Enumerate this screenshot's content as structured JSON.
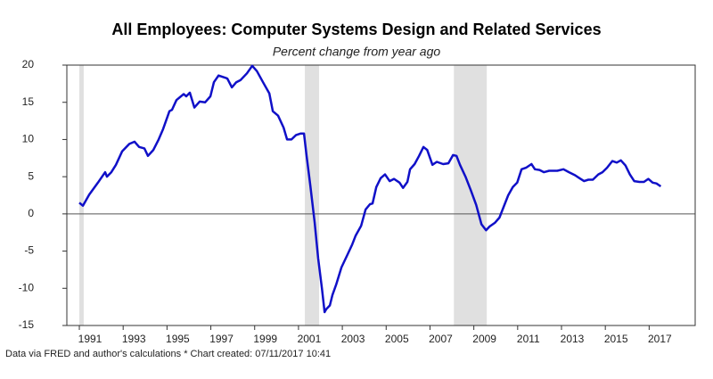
{
  "chart_data": {
    "type": "line",
    "title": "All Employees: Computer Systems Design and Related Services",
    "subtitle": "Percent change from year ago",
    "footnote": "Data via FRED and author's calculations * Chart created: 07/11/2017 10:41",
    "x": [
      1991.0,
      1991.16,
      1991.45,
      1991.85,
      1992.18,
      1992.26,
      1992.46,
      1992.67,
      1992.95,
      1993.28,
      1993.52,
      1993.73,
      1993.97,
      1994.13,
      1994.38,
      1994.62,
      1994.82,
      1995.11,
      1995.23,
      1995.43,
      1995.76,
      1995.88,
      1996.04,
      1996.25,
      1996.49,
      1996.74,
      1996.98,
      1997.14,
      1997.35,
      1997.55,
      1997.75,
      1997.96,
      1998.16,
      1998.36,
      1998.65,
      1998.89,
      1999.1,
      1999.38,
      1999.67,
      1999.83,
      2000.07,
      2000.32,
      2000.48,
      2000.68,
      2000.89,
      2001.09,
      2001.25,
      2001.37,
      2001.54,
      2001.74,
      2001.9,
      2002.07,
      2002.19,
      2002.27,
      2002.43,
      2002.55,
      2002.72,
      2002.96,
      2003.25,
      2003.45,
      2003.61,
      2003.86,
      2004.06,
      2004.26,
      2004.38,
      2004.55,
      2004.75,
      2004.95,
      2005.16,
      2005.36,
      2005.61,
      2005.77,
      2005.97,
      2006.09,
      2006.3,
      2006.5,
      2006.7,
      2006.87,
      2007.11,
      2007.31,
      2007.6,
      2007.84,
      2008.05,
      2008.21,
      2008.37,
      2008.62,
      2008.86,
      2009.11,
      2009.35,
      2009.56,
      2009.72,
      2009.96,
      2010.17,
      2010.37,
      2010.57,
      2010.78,
      2010.98,
      2011.18,
      2011.38,
      2011.63,
      2011.79,
      2012.0,
      2012.2,
      2012.44,
      2012.81,
      2013.09,
      2013.34,
      2013.62,
      2013.82,
      2014.03,
      2014.23,
      2014.43,
      2014.68,
      2014.87,
      2015.08,
      2015.32,
      2015.52,
      2015.71,
      2015.92,
      2016.12,
      2016.32,
      2016.56,
      2016.76,
      2016.96,
      2017.16,
      2017.33,
      2017.53
    ],
    "series": [
      {
        "color": "#1010c8",
        "values": [
          1.5,
          1.1,
          2.6,
          4.2,
          5.6,
          5.0,
          5.6,
          6.6,
          8.4,
          9.4,
          9.7,
          9.0,
          8.8,
          7.8,
          8.6,
          10.0,
          11.4,
          13.8,
          14.0,
          15.3,
          16.1,
          15.8,
          16.3,
          14.3,
          15.1,
          15.0,
          15.8,
          17.7,
          18.6,
          18.4,
          18.2,
          17.0,
          17.7,
          18.0,
          18.9,
          19.9,
          19.2,
          17.7,
          16.2,
          13.8,
          13.2,
          11.6,
          10.0,
          10.0,
          10.6,
          10.8,
          10.8,
          7.8,
          3.8,
          -1.2,
          -6.0,
          -10.0,
          -13.2,
          -12.8,
          -12.3,
          -10.9,
          -9.5,
          -7.2,
          -5.4,
          -4.1,
          -2.9,
          -1.6,
          0.6,
          1.3,
          1.4,
          3.6,
          4.8,
          5.3,
          4.4,
          4.7,
          4.2,
          3.5,
          4.3,
          6.0,
          6.7,
          7.8,
          9.0,
          8.6,
          6.6,
          7.0,
          6.7,
          6.8,
          7.9,
          7.8,
          6.6,
          5.0,
          3.2,
          1.2,
          -1.4,
          -2.2,
          -1.7,
          -1.2,
          -0.5,
          1.0,
          2.5,
          3.6,
          4.2,
          6.0,
          6.2,
          6.7,
          6.0,
          5.9,
          5.6,
          5.8,
          5.8,
          6.0,
          5.6,
          5.2,
          4.8,
          4.4,
          4.6,
          4.6,
          5.3,
          5.6,
          6.2,
          7.1,
          6.9,
          7.2,
          6.5,
          5.3,
          4.4,
          4.3,
          4.3,
          4.7,
          4.2,
          4.1,
          3.7
        ]
      }
    ],
    "recessions": [
      [
        1991.0,
        1991.2
      ],
      [
        2001.29,
        2001.94
      ],
      [
        2008.09,
        2009.59
      ]
    ],
    "xlim": [
      1990.43,
      2019.1
    ],
    "xticks": [
      1991,
      1993,
      1995,
      1997,
      1999,
      2001,
      2003,
      2005,
      2007,
      2009,
      2011,
      2013,
      2015,
      2017
    ],
    "ylim": [
      -15,
      20
    ],
    "yticks": [
      -15,
      -10,
      -5,
      0,
      5,
      10,
      15,
      20
    ]
  }
}
